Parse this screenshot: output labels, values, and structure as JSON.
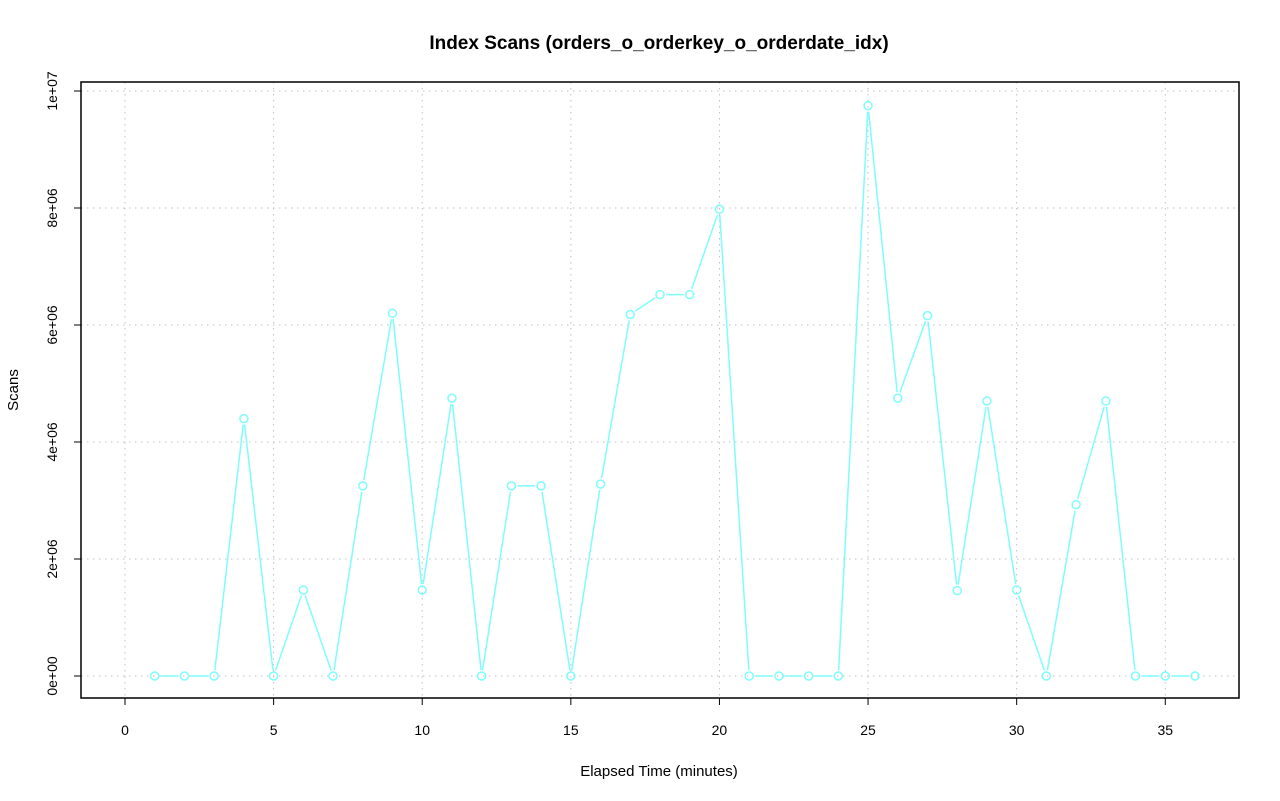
{
  "chart_data": {
    "type": "line",
    "title": "Index Scans (orders_o_orderkey_o_orderdate_idx)",
    "xlabel": "Elapsed Time (minutes)",
    "ylabel": "Scans",
    "xlim": [
      0,
      36
    ],
    "ylim": [
      0,
      10000000
    ],
    "x_ticks": [
      0,
      5,
      10,
      15,
      20,
      25,
      30,
      35
    ],
    "x_tick_labels": [
      "0",
      "5",
      "10",
      "15",
      "20",
      "25",
      "30",
      "35"
    ],
    "y_ticks": [
      0,
      2000000,
      4000000,
      6000000,
      8000000,
      10000000
    ],
    "y_tick_labels": [
      "0e+00",
      "2e+06",
      "4e+06",
      "6e+06",
      "8e+06",
      "1e+07"
    ],
    "grid": true,
    "series": [
      {
        "color": "#7ffcfc",
        "marker": "open-circle",
        "x": [
          1,
          2,
          3,
          4,
          5,
          6,
          7,
          8,
          9,
          10,
          11,
          12,
          13,
          14,
          15,
          16,
          17,
          18,
          19,
          20,
          21,
          22,
          23,
          24,
          25,
          26,
          27,
          28,
          29,
          30,
          31,
          32,
          33,
          34,
          35,
          36
        ],
        "y": [
          0,
          0,
          0,
          4400000,
          0,
          1470000,
          0,
          3250000,
          6200000,
          1470000,
          4750000,
          0,
          3250000,
          3250000,
          0,
          3280000,
          6180000,
          6520000,
          6520000,
          7980000,
          0,
          0,
          0,
          0,
          9750000,
          4750000,
          6160000,
          1460000,
          4700000,
          1470000,
          0,
          2930000,
          4700000,
          0,
          0,
          0
        ]
      }
    ]
  }
}
